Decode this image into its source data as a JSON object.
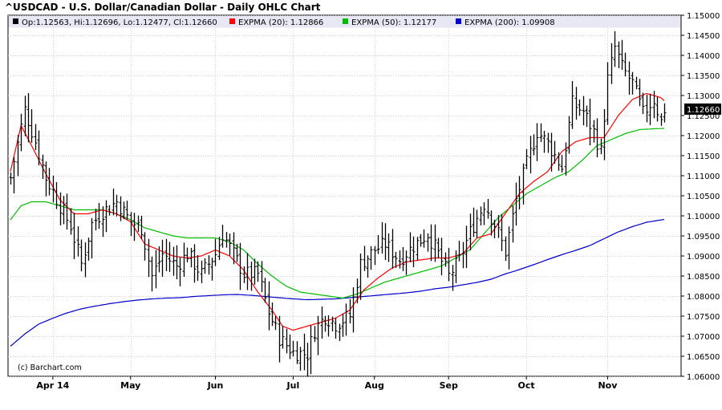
{
  "title": "^USDCAD - U.S. Dollar/Canadian Dollar - Daily OHLC Chart",
  "credit": "(c) Barchart.com",
  "chart_data": {
    "type": "ohlc",
    "title": "^USDCAD - U.S. Dollar/Canadian Dollar - Daily OHLC Chart",
    "legend": [
      {
        "label": "Op:1.12563, Hi:1.12696, Lo:1.12477, Cl:1.12660",
        "color": "#000000",
        "series": "price"
      },
      {
        "label": "EXPMA (20): 1.12866",
        "color": "#ff0000",
        "series": "ema20"
      },
      {
        "label": "EXPMA (50): 1.12177",
        "color": "#00bb00",
        "series": "ema50"
      },
      {
        "label": "EXPMA (200): 1.09908",
        "color": "#0000cc",
        "series": "ema200"
      }
    ],
    "last_price_label": "1.12660",
    "ylim": [
      1.06,
      1.15
    ],
    "y_ticks": [
      "1.06000",
      "1.06500",
      "1.07000",
      "1.07500",
      "1.08000",
      "1.08500",
      "1.09000",
      "1.09500",
      "1.10000",
      "1.10500",
      "1.11000",
      "1.11500",
      "1.12000",
      "1.12500",
      "1.13000",
      "1.13500",
      "1.14000",
      "1.14500",
      "1.15000"
    ],
    "x_ticks": [
      {
        "label": "Apr 14",
        "bar": 12
      },
      {
        "label": "May",
        "bar": 34
      },
      {
        "label": "Jun",
        "bar": 58
      },
      {
        "label": "Jul",
        "bar": 80
      },
      {
        "label": "Aug",
        "bar": 103
      },
      {
        "label": "Sep",
        "bar": 124
      },
      {
        "label": "Oct",
        "bar": 146
      },
      {
        "label": "Nov",
        "bar": 169
      }
    ],
    "bar_count": 188,
    "grid": true,
    "legend_position": "top",
    "anchors": {
      "close": [
        [
          0,
          1.1095
        ],
        [
          4,
          1.1265
        ],
        [
          7,
          1.1185
        ],
        [
          10,
          1.1095
        ],
        [
          14,
          1.1025
        ],
        [
          17,
          1.0975
        ],
        [
          20,
          1.088
        ],
        [
          23,
          1.098
        ],
        [
          26,
          1.101
        ],
        [
          30,
          1.1035
        ],
        [
          34,
          1.0985
        ],
        [
          37,
          1.097
        ],
        [
          40,
          1.085
        ],
        [
          43,
          1.0905
        ],
        [
          47,
          1.0875
        ],
        [
          50,
          1.0905
        ],
        [
          54,
          1.0855
        ],
        [
          58,
          1.0905
        ],
        [
          60,
          1.0955
        ],
        [
          63,
          1.0905
        ],
        [
          66,
          1.0855
        ],
        [
          70,
          1.0855
        ],
        [
          73,
          1.076
        ],
        [
          76,
          1.0695
        ],
        [
          80,
          1.066
        ],
        [
          84,
          1.0655
        ],
        [
          86,
          1.0715
        ],
        [
          89,
          1.075
        ],
        [
          92,
          1.073
        ],
        [
          96,
          1.075
        ],
        [
          99,
          1.088
        ],
        [
          103,
          1.0915
        ],
        [
          106,
          1.093
        ],
        [
          110,
          1.089
        ],
        [
          114,
          1.0925
        ],
        [
          118,
          1.0955
        ],
        [
          121,
          1.0905
        ],
        [
          124,
          1.085
        ],
        [
          127,
          1.089
        ],
        [
          130,
          1.096
        ],
        [
          134,
          1.103
        ],
        [
          137,
          1.098
        ],
        [
          140,
          1.091
        ],
        [
          143,
          1.104
        ],
        [
          146,
          1.113
        ],
        [
          149,
          1.121
        ],
        [
          152,
          1.118
        ],
        [
          156,
          1.112
        ],
        [
          159,
          1.128
        ],
        [
          162,
          1.126
        ],
        [
          165,
          1.121
        ],
        [
          167,
          1.116
        ],
        [
          169,
          1.134
        ],
        [
          171,
          1.142
        ],
        [
          173,
          1.137
        ],
        [
          176,
          1.133
        ],
        [
          179,
          1.1255
        ],
        [
          182,
          1.129
        ],
        [
          184,
          1.1235
        ],
        [
          185,
          1.1266
        ]
      ],
      "ema20": [
        [
          0,
          1.111
        ],
        [
          3,
          1.1225
        ],
        [
          6,
          1.1175
        ],
        [
          10,
          1.1105
        ],
        [
          14,
          1.104
        ],
        [
          18,
          1.1005
        ],
        [
          22,
          1.1005
        ],
        [
          26,
          1.1015
        ],
        [
          30,
          1.1005
        ],
        [
          34,
          1.0985
        ],
        [
          38,
          1.093
        ],
        [
          42,
          1.0915
        ],
        [
          46,
          1.09
        ],
        [
          50,
          1.0895
        ],
        [
          54,
          1.09
        ],
        [
          58,
          1.0915
        ],
        [
          62,
          1.09
        ],
        [
          66,
          1.0865
        ],
        [
          70,
          1.081
        ],
        [
          74,
          1.0765
        ],
        [
          77,
          1.0725
        ],
        [
          80,
          1.0715
        ],
        [
          84,
          1.0725
        ],
        [
          88,
          1.0735
        ],
        [
          92,
          1.0745
        ],
        [
          96,
          1.0765
        ],
        [
          100,
          1.0815
        ],
        [
          104,
          1.0845
        ],
        [
          108,
          1.087
        ],
        [
          112,
          1.0885
        ],
        [
          116,
          1.089
        ],
        [
          120,
          1.0895
        ],
        [
          124,
          1.0895
        ],
        [
          128,
          1.0905
        ],
        [
          132,
          1.0945
        ],
        [
          136,
          1.0955
        ],
        [
          140,
          1.1005
        ],
        [
          144,
          1.1055
        ],
        [
          148,
          1.1085
        ],
        [
          152,
          1.111
        ],
        [
          156,
          1.116
        ],
        [
          160,
          1.1185
        ],
        [
          164,
          1.1195
        ],
        [
          168,
          1.1195
        ],
        [
          172,
          1.125
        ],
        [
          176,
          1.129
        ],
        [
          180,
          1.1305
        ],
        [
          184,
          1.1295
        ],
        [
          185,
          1.1287
        ]
      ],
      "ema50": [
        [
          0,
          1.099
        ],
        [
          3,
          1.1025
        ],
        [
          6,
          1.1035
        ],
        [
          10,
          1.1035
        ],
        [
          14,
          1.1025
        ],
        [
          18,
          1.1015
        ],
        [
          22,
          1.1015
        ],
        [
          26,
          1.1015
        ],
        [
          30,
          1.1005
        ],
        [
          34,
          1.099
        ],
        [
          38,
          1.097
        ],
        [
          42,
          1.096
        ],
        [
          46,
          1.095
        ],
        [
          50,
          1.0945
        ],
        [
          54,
          1.0945
        ],
        [
          58,
          1.0945
        ],
        [
          62,
          1.0935
        ],
        [
          66,
          1.0915
        ],
        [
          70,
          1.088
        ],
        [
          74,
          1.085
        ],
        [
          78,
          1.0825
        ],
        [
          82,
          1.081
        ],
        [
          86,
          1.0805
        ],
        [
          90,
          1.08
        ],
        [
          94,
          1.0795
        ],
        [
          98,
          1.0805
        ],
        [
          102,
          1.082
        ],
        [
          106,
          1.0835
        ],
        [
          110,
          1.0845
        ],
        [
          114,
          1.0855
        ],
        [
          118,
          1.0865
        ],
        [
          122,
          1.0875
        ],
        [
          126,
          1.0895
        ],
        [
          130,
          1.0915
        ],
        [
          134,
          1.0955
        ],
        [
          138,
          1.0995
        ],
        [
          142,
          1.1025
        ],
        [
          146,
          1.1055
        ],
        [
          150,
          1.1075
        ],
        [
          154,
          1.1095
        ],
        [
          158,
          1.111
        ],
        [
          162,
          1.114
        ],
        [
          166,
          1.1175
        ],
        [
          170,
          1.119
        ],
        [
          174,
          1.1205
        ],
        [
          178,
          1.1215
        ],
        [
          182,
          1.1217
        ],
        [
          185,
          1.1218
        ]
      ],
      "ema200": [
        [
          0,
          1.0675
        ],
        [
          4,
          1.0705
        ],
        [
          8,
          1.073
        ],
        [
          12,
          1.0745
        ],
        [
          16,
          1.0758
        ],
        [
          20,
          1.0768
        ],
        [
          24,
          1.0775
        ],
        [
          28,
          1.0781
        ],
        [
          32,
          1.0786
        ],
        [
          36,
          1.079
        ],
        [
          40,
          1.0793
        ],
        [
          44,
          1.0795
        ],
        [
          48,
          1.0796
        ],
        [
          52,
          1.0799
        ],
        [
          56,
          1.0801
        ],
        [
          60,
          1.0803
        ],
        [
          64,
          1.0804
        ],
        [
          68,
          1.0802
        ],
        [
          72,
          1.0799
        ],
        [
          76,
          1.0796
        ],
        [
          80,
          1.0793
        ],
        [
          84,
          1.0791
        ],
        [
          88,
          1.0792
        ],
        [
          92,
          1.0793
        ],
        [
          96,
          1.0796
        ],
        [
          100,
          1.0799
        ],
        [
          104,
          1.0802
        ],
        [
          108,
          1.0805
        ],
        [
          112,
          1.0808
        ],
        [
          116,
          1.0812
        ],
        [
          120,
          1.0818
        ],
        [
          124,
          1.0822
        ],
        [
          128,
          1.0828
        ],
        [
          132,
          1.0834
        ],
        [
          136,
          1.0842
        ],
        [
          140,
          1.0855
        ],
        [
          144,
          1.0866
        ],
        [
          148,
          1.0878
        ],
        [
          152,
          1.0891
        ],
        [
          156,
          1.0903
        ],
        [
          160,
          1.0914
        ],
        [
          164,
          1.0926
        ],
        [
          168,
          1.0943
        ],
        [
          172,
          1.096
        ],
        [
          176,
          1.0973
        ],
        [
          180,
          1.0984
        ],
        [
          185,
          1.0991
        ]
      ]
    }
  }
}
